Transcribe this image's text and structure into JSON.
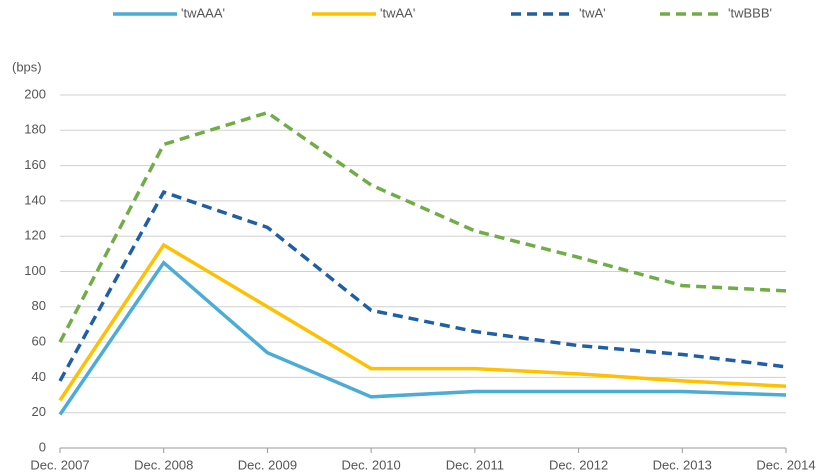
{
  "chart_data": {
    "type": "line",
    "y_label": "(bps)",
    "categories": [
      "Dec. 2007",
      "Dec. 2008",
      "Dec. 2009",
      "Dec. 2010",
      "Dec. 2011",
      "Dec. 2012",
      "Dec. 2013",
      "Dec. 2014"
    ],
    "series": [
      {
        "name": "'twAAA'",
        "color": "#4bacd6",
        "dashed": false,
        "values": [
          19,
          105,
          54,
          29,
          32,
          32,
          32,
          30
        ]
      },
      {
        "name": "'twAA'",
        "color": "#ffc000",
        "dashed": false,
        "values": [
          27,
          115,
          80,
          45,
          45,
          42,
          38,
          35
        ]
      },
      {
        "name": "'twA'",
        "color": "#1f5fa6",
        "dashed": true,
        "values": [
          38,
          145,
          125,
          78,
          66,
          58,
          53,
          46
        ]
      },
      {
        "name": "'twBBB'",
        "color": "#70ad47",
        "dashed": true,
        "values": [
          60,
          172,
          190,
          149,
          123,
          108,
          92,
          89
        ]
      }
    ],
    "ylim": [
      0,
      200
    ],
    "yticks": [
      0,
      20,
      40,
      60,
      80,
      100,
      120,
      140,
      160,
      180,
      200
    ],
    "grid": true
  }
}
